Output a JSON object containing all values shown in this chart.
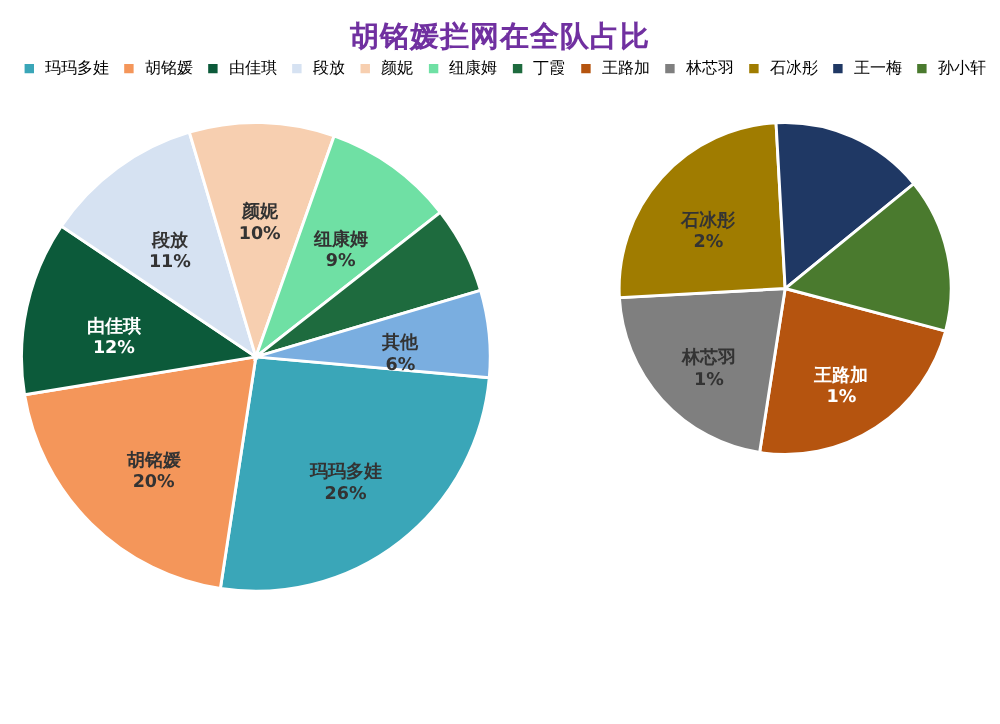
{
  "chart_data": [
    {
      "type": "pie",
      "title": "胡铭媛拦网在全队占比",
      "legend": "top",
      "categories": [
        "玛玛多娃",
        "胡铭媛",
        "由佳琪",
        "段放",
        "颜妮",
        "纽康姆",
        "丁霞",
        "其他"
      ],
      "values": [
        26,
        20,
        12,
        11,
        10,
        9,
        6,
        6
      ],
      "value_labels": [
        "26%",
        "20%",
        "12%",
        "11%",
        "10%",
        "9%",
        null,
        "6%"
      ],
      "colors": [
        "#3aa6b8",
        "#f4965a",
        "#0c5a3a",
        "#d6e2f2",
        "#f7cfb0",
        "#6fe0a4",
        "#1e6b3e",
        "#7aaee0"
      ]
    },
    {
      "type": "pie",
      "legend": "top",
      "categories": [
        "王路加",
        "林芯羽",
        "石冰彤",
        "王一梅",
        "孙小轩"
      ],
      "values": [
        1.4,
        1.3,
        1.5,
        0.9,
        0.9
      ],
      "value_labels": [
        "1%",
        "1%",
        "2%",
        null,
        null
      ],
      "colors": [
        "#b5540f",
        "#7f7f7f",
        "#a07c00",
        "#1f3864",
        "#4a7a2e"
      ]
    }
  ]
}
